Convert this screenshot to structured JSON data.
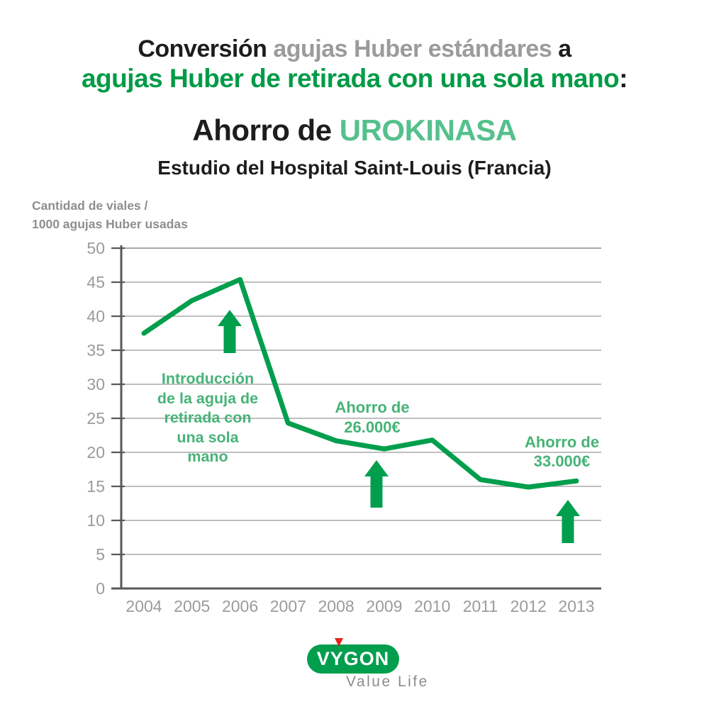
{
  "header": {
    "title_line1": {
      "part1": "Conversión",
      "part2": "agujas Huber estándares",
      "part3": "a"
    },
    "title_line2": {
      "text": "agujas Huber de retirada con una sola mano",
      "colon": ":"
    },
    "savings_line": {
      "prefix": "Ahorro de",
      "drug": "UROKINASA"
    },
    "study": "Estudio del Hospital Saint-Louis (Francia)"
  },
  "chart_data": {
    "type": "line",
    "title": "Ahorro de UROKINASA",
    "ylabel": "Cantidad de viales /\n1000 agujas Huber usadas",
    "xlabel": "",
    "x": [
      "2004",
      "2005",
      "2006",
      "2007",
      "2008",
      "2009",
      "2010",
      "2011",
      "2012",
      "2013"
    ],
    "values": [
      37.5,
      42.3,
      45.4,
      24.3,
      21.7,
      20.5,
      21.8,
      16.0,
      14.9,
      15.8
    ],
    "ylim": [
      0,
      50
    ],
    "y_ticks": [
      0,
      5,
      10,
      15,
      20,
      25,
      30,
      35,
      40,
      45,
      50
    ],
    "grid": true,
    "legend": "none",
    "annotations": [
      {
        "text": "Introducción\nde la aguja de\nretirada con\nuna sola\nmano",
        "arrow_points_to": "2006"
      },
      {
        "text": "Ahorro de\n26.000€",
        "arrow_points_to": "2009"
      },
      {
        "text": "Ahorro de\n33.000€",
        "arrow_points_to": "2013"
      }
    ]
  },
  "logo": {
    "brand": "VYGON",
    "tagline": "Value Life"
  },
  "colors": {
    "green_dark": "#009e4d",
    "green_title": "#009b47",
    "green_mint": "#55c08c",
    "green_annotation": "#47b377",
    "gray_text": "#9b9b9b",
    "gray_unit_label": "#8e8e8e",
    "axis": "#59595b",
    "grid": "#a9a9a9",
    "grid_top": "#8c8c8c",
    "black": "#1d1d1b",
    "red": "#e2251b",
    "background": "#ffffff"
  }
}
